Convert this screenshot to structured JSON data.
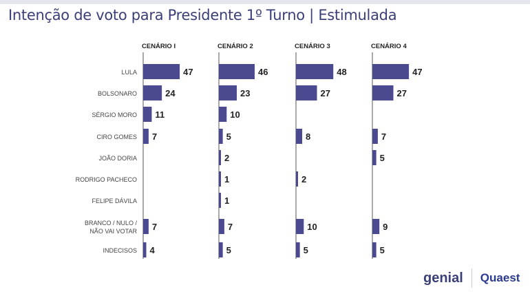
{
  "title": "Intenção de voto para Presidente 1º Turno | Estimulada",
  "logos": {
    "genial": "genial",
    "quaest": "Quaest"
  },
  "colors": {
    "bar": "#4b4a91",
    "title": "#3b3f78",
    "text": "#222222"
  },
  "chart_data": {
    "type": "bar",
    "orientation": "horizontal",
    "categories": [
      "LULA",
      "BOLSONARO",
      "SÉRGIO MORO",
      "CIRO GOMES",
      "JOÃO DORIA",
      "RODRIGO PACHECO",
      "FELIPE DÁVILA",
      "BRANCO / NULO / NÃO VAI VOTAR",
      "INDECISOS"
    ],
    "series": [
      {
        "name": "CENÁRIO I",
        "values": [
          47,
          24,
          11,
          7,
          null,
          null,
          null,
          7,
          4
        ]
      },
      {
        "name": "CENÁRIO 2",
        "values": [
          46,
          23,
          10,
          5,
          2,
          1,
          1,
          7,
          5
        ]
      },
      {
        "name": "CENÁRIO 3",
        "values": [
          48,
          27,
          null,
          8,
          null,
          2,
          null,
          10,
          5
        ]
      },
      {
        "name": "CENÁRIO 4",
        "values": [
          47,
          27,
          null,
          7,
          5,
          null,
          null,
          9,
          5
        ]
      }
    ]
  }
}
